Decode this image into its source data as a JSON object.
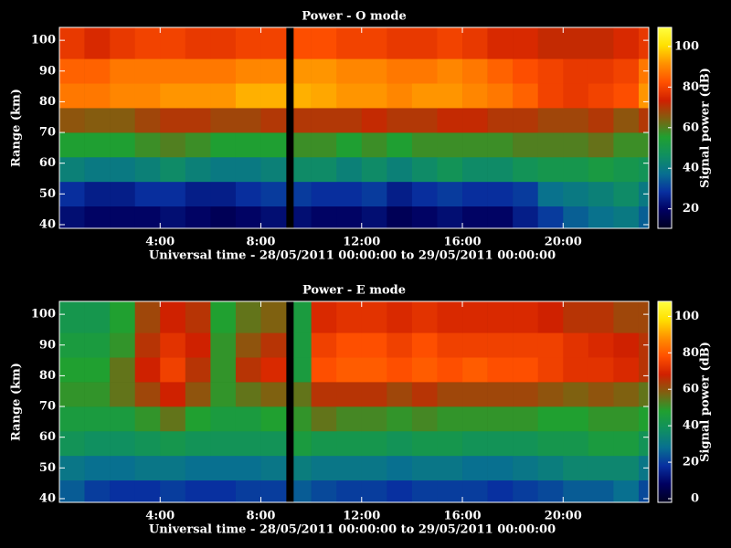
{
  "chart_data": [
    {
      "type": "heatmap",
      "title": "Power - O mode",
      "x_label": "Universal time - 28/05/2011 00:00:00 to 29/05/2011 00:00:00",
      "y_label": "Range (km)",
      "colorbar_label": "Signal power (dB)",
      "xbins": [
        0,
        1,
        2,
        3,
        4,
        5,
        6,
        7,
        8,
        9,
        9.3,
        10,
        11,
        12,
        13,
        14,
        15,
        16,
        17,
        18,
        19,
        20,
        21,
        22,
        23,
        23.4
      ],
      "ybins": [
        38.8,
        46,
        54,
        62,
        70,
        78,
        86,
        94,
        104.2
      ],
      "z": [
        [
          22,
          20,
          20,
          20,
          22,
          20,
          18,
          20,
          22,
          null,
          22,
          20,
          20,
          22,
          18,
          20,
          22,
          20,
          20,
          25,
          30,
          35,
          38,
          40,
          35
        ],
        [
          28,
          25,
          25,
          28,
          28,
          25,
          25,
          28,
          30,
          null,
          30,
          28,
          28,
          30,
          25,
          28,
          30,
          28,
          28,
          30,
          38,
          40,
          42,
          45,
          40
        ],
        [
          42,
          40,
          40,
          42,
          45,
          42,
          40,
          40,
          42,
          null,
          45,
          45,
          42,
          45,
          42,
          45,
          48,
          45,
          45,
          48,
          50,
          50,
          52,
          50,
          48
        ],
        [
          55,
          55,
          55,
          58,
          60,
          58,
          55,
          55,
          55,
          null,
          58,
          58,
          55,
          58,
          55,
          58,
          58,
          58,
          58,
          60,
          60,
          60,
          62,
          58,
          58
        ],
        [
          66,
          65,
          65,
          68,
          70,
          70,
          68,
          68,
          70,
          null,
          70,
          70,
          70,
          72,
          70,
          70,
          72,
          72,
          70,
          70,
          68,
          68,
          70,
          66,
          70
        ],
        [
          88,
          88,
          90,
          90,
          92,
          92,
          92,
          95,
          95,
          null,
          95,
          94,
          92,
          92,
          90,
          92,
          92,
          90,
          88,
          85,
          80,
          78,
          80,
          82,
          92
        ],
        [
          85,
          85,
          88,
          88,
          88,
          88,
          88,
          90,
          90,
          null,
          92,
          92,
          90,
          90,
          88,
          88,
          90,
          88,
          85,
          82,
          80,
          78,
          78,
          80,
          88
        ],
        [
          78,
          75,
          78,
          80,
          80,
          78,
          78,
          80,
          80,
          null,
          82,
          82,
          80,
          80,
          78,
          78,
          80,
          78,
          75,
          75,
          72,
          72,
          72,
          75,
          78
        ]
      ],
      "xlim": [
        0,
        23.4
      ],
      "ylim": [
        38.8,
        104.2
      ],
      "clim": [
        10.4,
        109.4
      ],
      "xticks": [
        {
          "value": 4,
          "label": "4:00"
        },
        {
          "value": 8,
          "label": "8:00"
        },
        {
          "value": 12,
          "label": "12:00"
        },
        {
          "value": 16,
          "label": "16:00"
        },
        {
          "value": 20,
          "label": "20:00"
        }
      ],
      "yticks": [
        40,
        50,
        60,
        70,
        80,
        90,
        100
      ],
      "cticks": [
        20,
        40,
        60,
        80,
        100
      ],
      "colorscale": [
        "#000020",
        "#000060",
        "#0830a0",
        "#087090",
        "#109060",
        "#20a030",
        "#806010",
        "#d02000",
        "#ff5000",
        "#ff9000",
        "#ffe000",
        "#ffff40"
      ]
    },
    {
      "type": "heatmap",
      "title": "Power - E mode",
      "x_label": "Universal time - 28/05/2011 00:00:00 to 29/05/2011 00:00:00",
      "y_label": "Range (km)",
      "colorbar_label": "Signal power (dB)",
      "xbins": [
        0,
        1,
        2,
        3,
        4,
        5,
        6,
        7,
        8,
        9,
        9.3,
        10,
        11,
        12,
        13,
        14,
        15,
        16,
        17,
        18,
        19,
        20,
        21,
        22,
        23,
        23.4
      ],
      "ybins": [
        38.8,
        46,
        54,
        62,
        70,
        78,
        86,
        94,
        104.2
      ],
      "z": [
        [
          25,
          20,
          18,
          18,
          20,
          18,
          18,
          20,
          20,
          null,
          25,
          22,
          20,
          20,
          18,
          20,
          20,
          20,
          18,
          20,
          22,
          25,
          25,
          28,
          22
        ],
        [
          30,
          28,
          28,
          30,
          30,
          28,
          28,
          28,
          30,
          null,
          32,
          30,
          30,
          30,
          28,
          30,
          30,
          28,
          28,
          30,
          32,
          35,
          35,
          35,
          30
        ],
        [
          40,
          38,
          38,
          40,
          42,
          40,
          40,
          40,
          40,
          null,
          45,
          42,
          42,
          42,
          40,
          42,
          42,
          40,
          40,
          40,
          42,
          42,
          45,
          45,
          40
        ],
        [
          45,
          45,
          45,
          50,
          55,
          48,
          45,
          45,
          48,
          null,
          50,
          55,
          52,
          52,
          50,
          52,
          50,
          50,
          50,
          50,
          48,
          48,
          50,
          50,
          48
        ],
        [
          50,
          50,
          55,
          62,
          68,
          60,
          50,
          55,
          58,
          null,
          55,
          65,
          65,
          65,
          62,
          65,
          62,
          62,
          62,
          62,
          60,
          58,
          60,
          58,
          55
        ],
        [
          48,
          48,
          55,
          68,
          75,
          65,
          50,
          65,
          70,
          null,
          45,
          78,
          80,
          80,
          78,
          80,
          78,
          80,
          78,
          78,
          75,
          72,
          72,
          70,
          65
        ],
        [
          45,
          45,
          50,
          65,
          72,
          68,
          50,
          60,
          65,
          null,
          45,
          75,
          78,
          78,
          75,
          78,
          75,
          75,
          75,
          75,
          75,
          72,
          70,
          68,
          65
        ],
        [
          42,
          42,
          48,
          62,
          68,
          65,
          48,
          55,
          58,
          null,
          45,
          70,
          72,
          72,
          70,
          72,
          70,
          70,
          70,
          70,
          68,
          65,
          65,
          62,
          62
        ]
      ],
      "xlim": [
        0,
        23.4
      ],
      "ylim": [
        38.8,
        104.2
      ],
      "clim": [
        -2,
        108.2
      ],
      "xticks": [
        {
          "value": 4,
          "label": "4:00"
        },
        {
          "value": 8,
          "label": "8:00"
        },
        {
          "value": 12,
          "label": "12:00"
        },
        {
          "value": 16,
          "label": "16:00"
        },
        {
          "value": 20,
          "label": "20:00"
        }
      ],
      "yticks": [
        40,
        50,
        60,
        70,
        80,
        90,
        100
      ],
      "cticks": [
        0,
        20,
        40,
        60,
        80,
        100
      ],
      "colorscale": [
        "#000020",
        "#000060",
        "#0830a0",
        "#087090",
        "#109060",
        "#20a030",
        "#806010",
        "#d02000",
        "#ff5000",
        "#ff9000",
        "#ffe000",
        "#ffff40"
      ]
    }
  ]
}
